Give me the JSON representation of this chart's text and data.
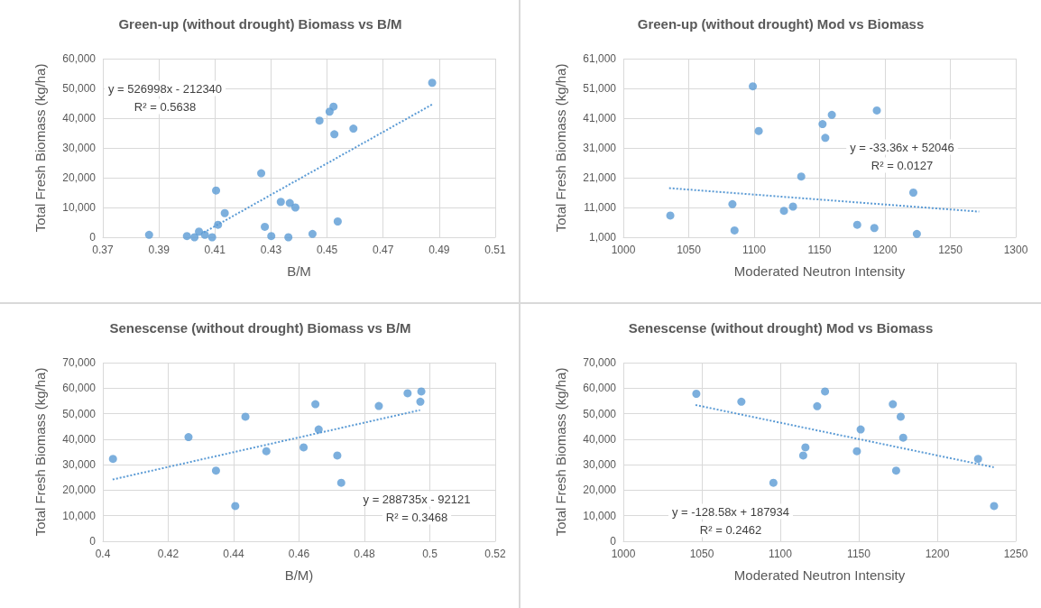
{
  "chart_data": [
    {
      "type": "scatter",
      "title": "Green-up (without drought) Biomass vs B/M",
      "xlabel": "B/M",
      "ylabel": "Total Fresh Biomass (kg/ha)",
      "xlim": [
        0.37,
        0.51
      ],
      "xticks": [
        0.37,
        0.39,
        0.41,
        0.43,
        0.45,
        0.47,
        0.49,
        0.51
      ],
      "ylim": [
        0,
        60000
      ],
      "yticks": [
        {
          "value": 0,
          "label": "0"
        },
        {
          "value": 10000,
          "label": "10,000"
        },
        {
          "value": 20000,
          "label": "20,000"
        },
        {
          "value": 30000,
          "label": "30,000"
        },
        {
          "value": 40000,
          "label": "40,000"
        },
        {
          "value": 50000,
          "label": "50,000"
        },
        {
          "value": 60000,
          "label": "60,000"
        }
      ],
      "grid": true,
      "annotations": [
        "y = 526998x - 212340",
        "R² = 0.5638"
      ],
      "series": [
        {
          "type": "scatter",
          "color": "#5b9bd5",
          "marker": "circle",
          "x": [
            0.3865,
            0.4,
            0.4027,
            0.4043,
            0.4064,
            0.409,
            0.4104,
            0.4111,
            0.4135,
            0.4265,
            0.4278,
            0.4301,
            0.4335,
            0.4362,
            0.4367,
            0.4387,
            0.4448,
            0.4473,
            0.4509,
            0.4523,
            0.4526,
            0.4538,
            0.4594,
            0.4875
          ],
          "values": [
            800,
            400,
            0,
            1900,
            800,
            0,
            15700,
            4200,
            8100,
            21500,
            3500,
            400,
            11900,
            0,
            11500,
            10000,
            1100,
            39200,
            42200,
            43900,
            34600,
            5300,
            36500,
            51900
          ]
        },
        {
          "type": "line",
          "color": "#5b9bd5",
          "marker": "none",
          "line_style": "dotted",
          "x": [
            0.406,
            0.4875
          ],
          "values": [
            1600,
            44600
          ]
        }
      ]
    },
    {
      "type": "scatter",
      "title": "Green-up (without drought) Mod vs Biomass",
      "xlabel": "Moderated Neutron Intensity",
      "ylabel": "Total Fresh Biomass (kg/ha)",
      "xlim": [
        1000,
        1300
      ],
      "xticks": [
        1000,
        1050,
        1100,
        1150,
        1200,
        1250,
        1300
      ],
      "ylim": [
        1000,
        61000
      ],
      "yticks": [
        {
          "value": 1000,
          "label": "1,000"
        },
        {
          "value": 11000,
          "label": "11,000"
        },
        {
          "value": 21000,
          "label": "21,000"
        },
        {
          "value": 31000,
          "label": "31,000"
        },
        {
          "value": 41000,
          "label": "41,000"
        },
        {
          "value": 51000,
          "label": "51,000"
        },
        {
          "value": 61000,
          "label": "61,000"
        }
      ],
      "grid": true,
      "annotations": [
        "y = -33.36x + 52046",
        "R² = 0.0127"
      ],
      "series": [
        {
          "type": "scatter",
          "color": "#5b9bd5",
          "marker": "circle",
          "x": [
            1035.9,
            1083.4,
            1085,
            1099,
            1103.5,
            1122.8,
            1129.7,
            1136,
            1152.3,
            1154.4,
            1159.4,
            1178.8,
            1191.9,
            1193.8,
            1221.7,
            1224.4
          ],
          "values": [
            8300,
            12100,
            3300,
            51700,
            36700,
            9900,
            11300,
            21400,
            39000,
            34400,
            42100,
            5200,
            4100,
            43600,
            16000,
            2100
          ]
        },
        {
          "type": "line",
          "color": "#5b9bd5",
          "marker": "none",
          "line_style": "dotted",
          "x": [
            1035,
            1272
          ],
          "values": [
            17500,
            9600
          ]
        }
      ]
    },
    {
      "type": "scatter",
      "title": "Senescense (without drought) Biomass vs B/M",
      "xlabel": "B/M)",
      "ylabel": "Total Fresh Biomass (kg/ha)",
      "xlim": [
        0.4,
        0.52
      ],
      "xticks": [
        0.4,
        0.42,
        0.44,
        0.46,
        0.48,
        0.5,
        0.52
      ],
      "ylim": [
        0,
        70000
      ],
      "yticks": [
        0,
        {
          "value": 10000,
          "label": "10,000"
        },
        {
          "value": 20000,
          "label": "20,000"
        },
        {
          "value": 30000,
          "label": "30,000"
        },
        {
          "value": 40000,
          "label": "40,000"
        },
        {
          "value": 50000,
          "label": "50,000"
        },
        {
          "value": 60000,
          "label": "60,000"
        },
        {
          "value": 70000,
          "label": "70,000"
        }
      ],
      "grid": true,
      "annotations": [
        "y = 288735x - 92121",
        "R² = 0.3468"
      ],
      "series": [
        {
          "type": "scatter",
          "color": "#5b9bd5",
          "marker": "circle",
          "x": [
            0.4031,
            0.4262,
            0.4346,
            0.4405,
            0.4436,
            0.45,
            0.4614,
            0.465,
            0.466,
            0.4717,
            0.4729,
            0.4844,
            0.4932,
            0.4971,
            0.4974
          ],
          "values": [
            32300,
            40800,
            27700,
            13800,
            48800,
            35300,
            36800,
            53700,
            43800,
            33600,
            22900,
            53000,
            58000,
            54700,
            58700
          ]
        },
        {
          "type": "line",
          "color": "#5b9bd5",
          "marker": "none",
          "line_style": "dotted",
          "x": [
            0.403,
            0.497
          ],
          "values": [
            24200,
            51400
          ]
        }
      ]
    },
    {
      "type": "scatter",
      "title": "Senescense (without drought) Mod vs Biomass",
      "xlabel": "Moderated Neutron Intensity",
      "ylabel": "Total Fresh Biomass (kg/ha)",
      "xlim": [
        1000,
        1250
      ],
      "xticks": [
        1000,
        1050,
        1100,
        1150,
        1200,
        1250
      ],
      "ylim": [
        0,
        70000
      ],
      "yticks": [
        0,
        {
          "value": 10000,
          "label": "10,000"
        },
        {
          "value": 20000,
          "label": "20,000"
        },
        {
          "value": 30000,
          "label": "30,000"
        },
        {
          "value": 40000,
          "label": "40,000"
        },
        {
          "value": 50000,
          "label": "50,000"
        },
        {
          "value": 60000,
          "label": "60,000"
        },
        {
          "value": 70000,
          "label": "70,000"
        }
      ],
      "grid": true,
      "annotations": [
        "y = -128.58x + 187934",
        "R² = 0.2462"
      ],
      "series": [
        {
          "type": "scatter",
          "color": "#5b9bd5",
          "marker": "circle",
          "x": [
            1046.5,
            1075.2,
            1095.6,
            1114.6,
            1116,
            1123.5,
            1128.5,
            1148.8,
            1151.2,
            1171.7,
            1173.8,
            1176.7,
            1178.3,
            1226,
            1236.2
          ],
          "values": [
            57800,
            54700,
            22900,
            33600,
            36800,
            52900,
            58700,
            35300,
            43800,
            53700,
            27700,
            48800,
            40600,
            32300,
            13800
          ]
        },
        {
          "type": "line",
          "color": "#5b9bd5",
          "marker": "none",
          "line_style": "dotted",
          "x": [
            1046,
            1236
          ],
          "values": [
            53400,
            29000
          ]
        }
      ]
    }
  ]
}
